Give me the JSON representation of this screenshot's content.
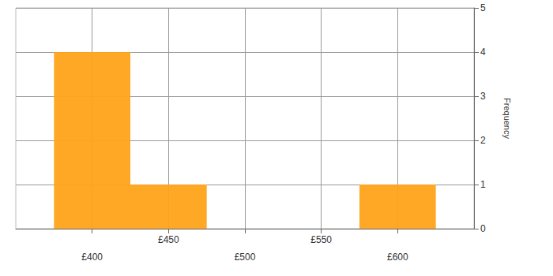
{
  "chart_data": {
    "type": "histogram",
    "bins": [
      375,
      425,
      475,
      525,
      575,
      625
    ],
    "counts": [
      4,
      1,
      0,
      0,
      1
    ],
    "color": "#ffa31a",
    "xlim": [
      350,
      650
    ],
    "xticks": [
      {
        "value": 400,
        "label": "£400"
      },
      {
        "value": 450,
        "label": "£450"
      },
      {
        "value": 500,
        "label": "£500"
      },
      {
        "value": 550,
        "label": "£550"
      },
      {
        "value": 600,
        "label": "£600"
      }
    ],
    "ylim": [
      0,
      5
    ],
    "yticks": [
      0,
      1,
      2,
      3,
      4,
      5
    ],
    "ylabel": "Frequency",
    "grid": true
  }
}
